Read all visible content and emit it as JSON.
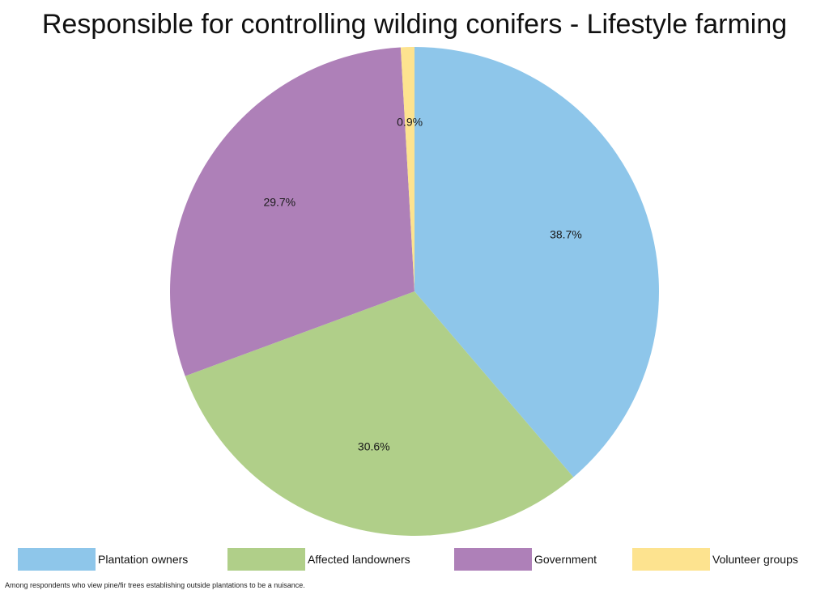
{
  "chart_data": {
    "type": "pie",
    "title": "Responsible for controlling wilding conifers - Lifestyle farming",
    "categories": [
      "Plantation owners",
      "Affected landowners",
      "Government",
      "Volunteer groups"
    ],
    "values": [
      38.7,
      30.6,
      29.7,
      0.9
    ],
    "data_labels": [
      "38.7%",
      "30.6%",
      "29.7%",
      "0.9%"
    ],
    "colors": [
      "#8ec6ea",
      "#b0cf89",
      "#ae80b8",
      "#fde38f"
    ],
    "start": "12 o'clock",
    "direction": "clockwise",
    "legend_position": "bottom",
    "footnote": "Among respondents who view pine/fir trees establishing outside plantations to be a nuisance."
  }
}
